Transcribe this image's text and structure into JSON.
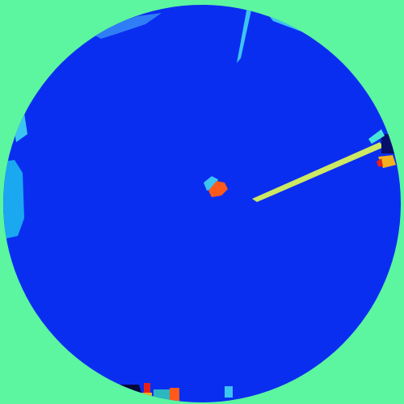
{
  "colors": {
    "background": "#5cf5a0",
    "disc": "#0a2ef0",
    "disc_edge": "#0b34e8",
    "cyan_region": "#1aa8f0",
    "light_blue": "#2f7ef6",
    "sky_blue": "#3cc4f3",
    "orange": "#ff5a1a",
    "yellow_green": "#d8f25a",
    "light_cyan": "#48e3d8",
    "navy": "#06106a",
    "dark_navy": "#04083a",
    "teal": "#2bb6c0",
    "amber": "#f3b11f",
    "red": "#e6211a",
    "olive": "#9ac43a"
  }
}
